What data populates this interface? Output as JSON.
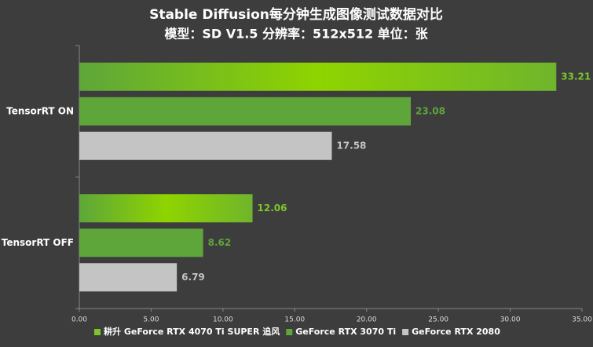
{
  "chart_data": {
    "type": "hbar",
    "title": "Stable Diffusion每分钟生成图像测试数据对比",
    "subtitle": "模型：SD V1.5  分辨率：512x512 单位：张",
    "categories": [
      "TensorRT ON",
      "TensorRT OFF"
    ],
    "series": [
      {
        "name": "耕升 GeForce RTX 4070 Ti SUPER 追风",
        "color": "#7cc62a",
        "values": [
          33.21,
          12.06
        ]
      },
      {
        "name": "GeForce RTX 3070 Ti",
        "color": "#5ea63a",
        "values": [
          23.08,
          8.62
        ]
      },
      {
        "name": "GeForce RTX 2080",
        "color": "#c4c4c4",
        "values": [
          17.58,
          6.79
        ]
      }
    ],
    "xlim": [
      0,
      35
    ],
    "xticks": [
      {
        "value": 0,
        "label": "0.00"
      },
      {
        "value": 5,
        "label": "5.00"
      },
      {
        "value": 10,
        "label": "10.00"
      },
      {
        "value": 15,
        "label": "15.00"
      },
      {
        "value": 20,
        "label": "20.00"
      },
      {
        "value": 25,
        "label": "25.00"
      },
      {
        "value": 30,
        "label": "30.00"
      },
      {
        "value": 35,
        "label": "35.00"
      }
    ],
    "legend": "bottom"
  }
}
